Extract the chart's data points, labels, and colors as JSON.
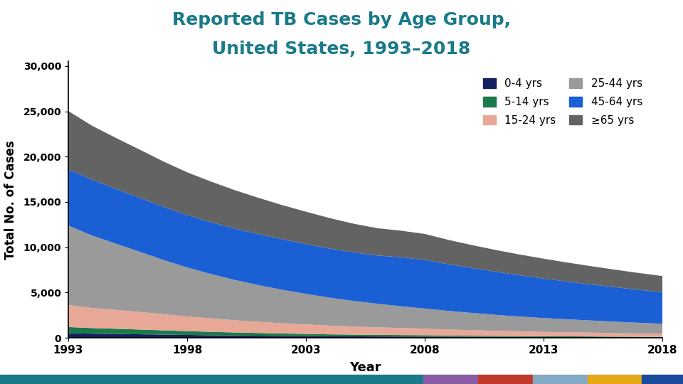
{
  "title_line1": "Reported TB Cases by Age Group,",
  "title_line2": "United States, 1993–2018",
  "title_color": "#1a7a8a",
  "xlabel": "Year",
  "ylabel": "Total No. of Cases",
  "years": [
    1993,
    1994,
    1995,
    1996,
    1997,
    1998,
    1999,
    2000,
    2001,
    2002,
    2003,
    2004,
    2005,
    2006,
    2007,
    2008,
    2009,
    2010,
    2011,
    2012,
    2013,
    2014,
    2015,
    2016,
    2017,
    2018
  ],
  "age_groups": [
    "0-4 yrs",
    "5-14 yrs",
    "15-24 yrs",
    "25-44 yrs",
    "45-64 yrs",
    "≥65 yrs"
  ],
  "colors": [
    "#152060",
    "#1a7a4a",
    "#e8a898",
    "#9a9a9a",
    "#1a5fd4",
    "#636363"
  ],
  "data": {
    "0-4 yrs": [
      519,
      471,
      441,
      403,
      369,
      330,
      298,
      270,
      248,
      224,
      204,
      183,
      175,
      163,
      155,
      148,
      133,
      121,
      112,
      103,
      96,
      91,
      84,
      77,
      70,
      65
    ],
    "5-14 yrs": [
      681,
      621,
      571,
      521,
      468,
      418,
      375,
      333,
      298,
      265,
      238,
      213,
      193,
      178,
      163,
      152,
      137,
      123,
      112,
      101,
      91,
      84,
      77,
      69,
      63,
      58
    ],
    "15-24 yrs": [
      2425,
      2218,
      2082,
      1938,
      1778,
      1622,
      1479,
      1349,
      1231,
      1128,
      1042,
      962,
      890,
      831,
      771,
      722,
      659,
      610,
      560,
      519,
      479,
      449,
      419,
      388,
      362,
      337
    ],
    "25-44 yrs": [
      8780,
      7986,
      7305,
      6647,
      5993,
      5403,
      4897,
      4444,
      4048,
      3696,
      3378,
      3081,
      2822,
      2602,
      2400,
      2218,
      2052,
      1898,
      1757,
      1635,
      1525,
      1430,
      1341,
      1255,
      1178,
      1103
    ],
    "45-64 yrs": [
      6228,
      6150,
      6050,
      5950,
      5870,
      5780,
      5720,
      5680,
      5640,
      5580,
      5500,
      5420,
      5360,
      5320,
      5420,
      5360,
      5150,
      4960,
      4760,
      4560,
      4360,
      4160,
      3980,
      3810,
      3640,
      3480
    ],
    "≥65 yrs": [
      6400,
      5960,
      5620,
      5320,
      4990,
      4720,
      4480,
      4230,
      3990,
      3760,
      3560,
      3360,
      3160,
      3010,
      2920,
      2870,
      2680,
      2520,
      2390,
      2280,
      2190,
      2100,
      2010,
      1930,
      1850,
      1780
    ]
  },
  "yticks": [
    0,
    5000,
    10000,
    15000,
    20000,
    25000,
    30000
  ],
  "ylim": [
    0,
    30500
  ],
  "xticks": [
    1993,
    1998,
    2003,
    2008,
    2013,
    2018
  ],
  "figsize": [
    9.6,
    5.4
  ],
  "dpi": 100,
  "bottom_colors": [
    "#1a7a8a",
    "#8b5ca6",
    "#c0392b",
    "#85a9c5",
    "#e6a817",
    "#1a4c9b"
  ],
  "bottom_widths": [
    0.62,
    0.08,
    0.08,
    0.08,
    0.08,
    0.06
  ]
}
